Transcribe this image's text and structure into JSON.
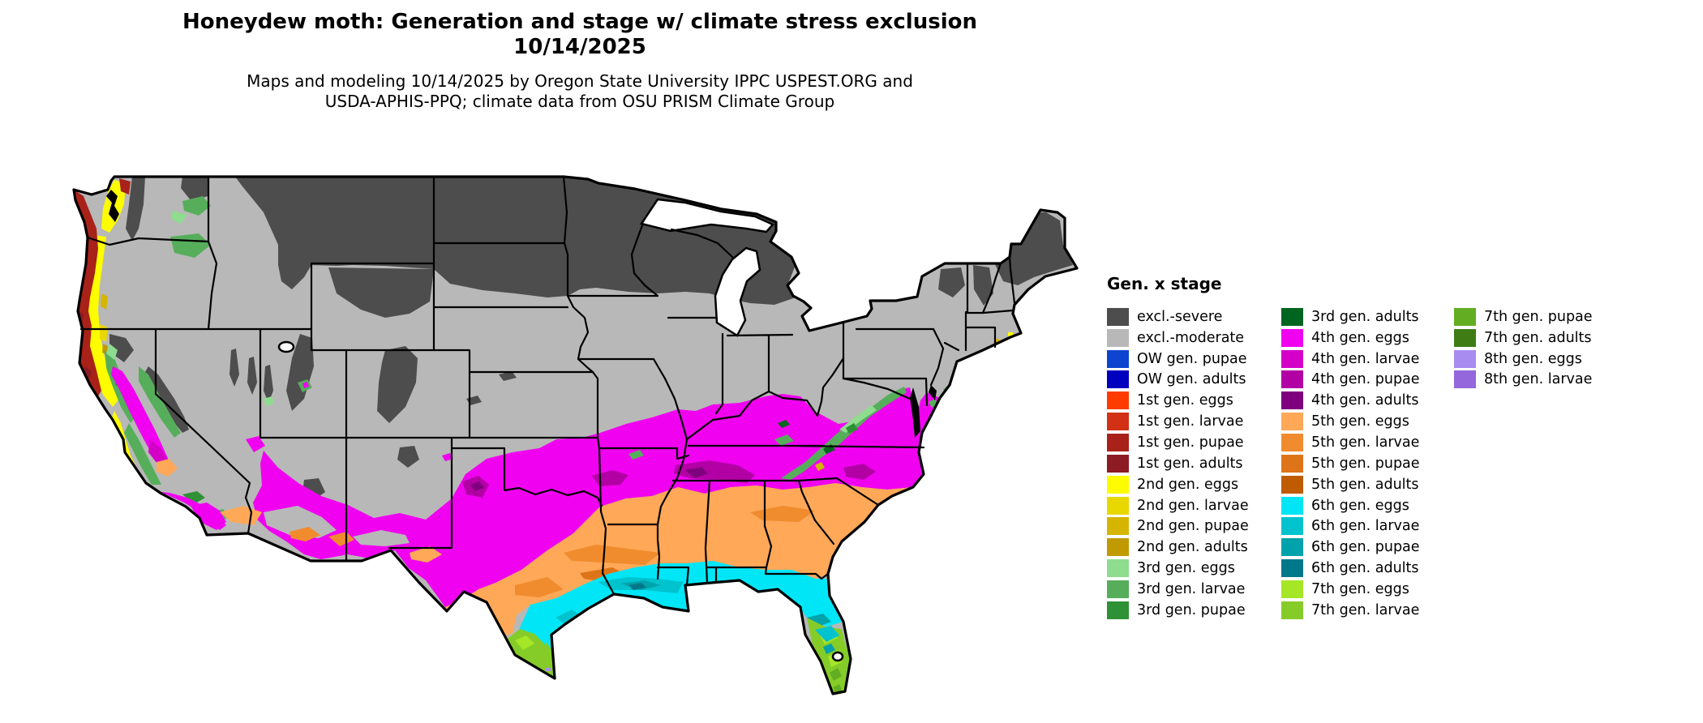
{
  "header": {
    "title_line1": "Honeydew moth: Generation and stage w/ climate stress exclusion",
    "title_line2": "10/14/2025",
    "subtitle_line1": "Maps and modeling 10/14/2025 by Oregon State University IPPC USPEST.ORG and",
    "subtitle_line2": "USDA-APHIS-PPQ; climate data from OSU PRISM Climate Group"
  },
  "legend": {
    "title": "Gen. x stage",
    "columns": [
      [
        {
          "key": "excl_severe",
          "label": "excl.-severe",
          "color": "#4d4d4d"
        },
        {
          "key": "excl_moderate",
          "label": "excl.-moderate",
          "color": "#b8b8b8"
        },
        {
          "key": "ow_pupae",
          "label": "OW gen. pupae",
          "color": "#0d45d0"
        },
        {
          "key": "ow_adults",
          "label": "OW gen. adults",
          "color": "#0000bf"
        },
        {
          "key": "g1_eggs",
          "label": "1st gen. eggs",
          "color": "#fe3b00"
        },
        {
          "key": "g1_larvae",
          "label": "1st gen. larvae",
          "color": "#d23115"
        },
        {
          "key": "g1_pupae",
          "label": "1st gen. pupae",
          "color": "#a8221a"
        },
        {
          "key": "g1_adults",
          "label": "1st gen. adults",
          "color": "#8c1b23"
        },
        {
          "key": "g2_eggs",
          "label": "2nd gen. eggs",
          "color": "#fdfd00"
        },
        {
          "key": "g2_larvae",
          "label": "2nd gen. larvae",
          "color": "#e9d800"
        },
        {
          "key": "g2_pupae",
          "label": "2nd gen. pupae",
          "color": "#d5b500"
        },
        {
          "key": "g2_adults",
          "label": "2nd gen. adults",
          "color": "#c09a00"
        },
        {
          "key": "g3_eggs",
          "label": "3rd gen. eggs",
          "color": "#8edc8e"
        },
        {
          "key": "g3_larvae",
          "label": "3rd gen. larvae",
          "color": "#56ae5b"
        },
        {
          "key": "g3_pupae",
          "label": "3rd gen. pupae",
          "color": "#2f9135"
        }
      ],
      [
        {
          "key": "g3_adults",
          "label": "3rd gen. adults",
          "color": "#00651f"
        },
        {
          "key": "g4_eggs",
          "label": "4th gen. eggs",
          "color": "#f002f0"
        },
        {
          "key": "g4_larvae",
          "label": "4th gen. larvae",
          "color": "#d400c8"
        },
        {
          "key": "g4_pupae",
          "label": "4th gen. pupae",
          "color": "#b200a5"
        },
        {
          "key": "g4_adults",
          "label": "4th gen. adults",
          "color": "#7e007e"
        },
        {
          "key": "g5_eggs",
          "label": "5th gen. eggs",
          "color": "#ffa858"
        },
        {
          "key": "g5_larvae",
          "label": "5th gen. larvae",
          "color": "#f08c2e"
        },
        {
          "key": "g5_pupae",
          "label": "5th gen. pupae",
          "color": "#dd7418"
        },
        {
          "key": "g5_adults",
          "label": "5th gen. adults",
          "color": "#bf5b00"
        },
        {
          "key": "g6_eggs",
          "label": "6th gen. eggs",
          "color": "#00e6f6"
        },
        {
          "key": "g6_larvae",
          "label": "6th gen. larvae",
          "color": "#00c3ce"
        },
        {
          "key": "g6_pupae",
          "label": "6th gen. pupae",
          "color": "#00a2ac"
        },
        {
          "key": "g6_adults",
          "label": "6th gen. adults",
          "color": "#00788a"
        },
        {
          "key": "g7_eggs",
          "label": "7th gen. eggs",
          "color": "#a5e626"
        },
        {
          "key": "g7_larvae",
          "label": "7th gen. larvae",
          "color": "#85cc29"
        }
      ],
      [
        {
          "key": "g7_pupae",
          "label": "7th gen. pupae",
          "color": "#63ad22"
        },
        {
          "key": "g7_adults",
          "label": "7th gen. adults",
          "color": "#3f7d14"
        },
        {
          "key": "g8_eggs",
          "label": "8th gen. eggs",
          "color": "#a98cf0"
        },
        {
          "key": "g8_larvae",
          "label": "8th gen. larvae",
          "color": "#9467dd"
        }
      ]
    ]
  },
  "map": {
    "description": "Contiguous United States raster map of honeydew moth generation and life stage with climate stress exclusion, 10/14/2025",
    "border_color": "#000000",
    "water_color": "#ffffff"
  }
}
